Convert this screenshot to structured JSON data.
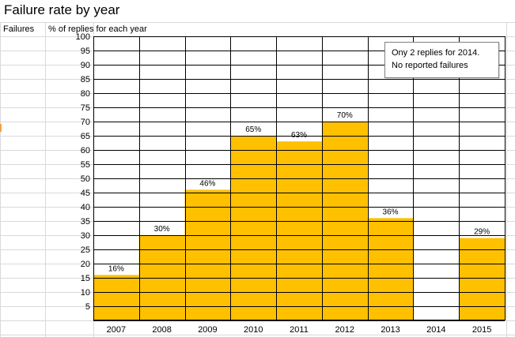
{
  "sheet": {
    "title": "Failure rate by year",
    "col_a_header": "Failures",
    "col_b_header": "% of replies for each year"
  },
  "annotation": {
    "line1": "Ony 2 replies for 2014.",
    "line2": "No reported failures"
  },
  "colors": {
    "bar": "#FFC000",
    "grid": "#000000",
    "sheet_grid": "#d9d9d9"
  },
  "chart_data": {
    "type": "bar",
    "title": "Failure rate by year",
    "ylabel": "% of replies for each year",
    "categories": [
      "2007",
      "2008",
      "2009",
      "2010",
      "2011",
      "2012",
      "2013",
      "2014",
      "2015"
    ],
    "values": [
      16,
      30,
      46,
      65,
      63,
      70,
      36,
      0,
      29
    ],
    "data_labels": [
      "16%",
      "30%",
      "46%",
      "65%",
      "63%",
      "70%",
      "36%",
      "",
      "29%"
    ],
    "yticks": [
      5,
      10,
      15,
      20,
      25,
      30,
      35,
      40,
      45,
      50,
      55,
      60,
      65,
      70,
      75,
      80,
      85,
      90,
      95,
      100
    ],
    "ylim": [
      0,
      100
    ],
    "grid": true,
    "legend": "none"
  }
}
